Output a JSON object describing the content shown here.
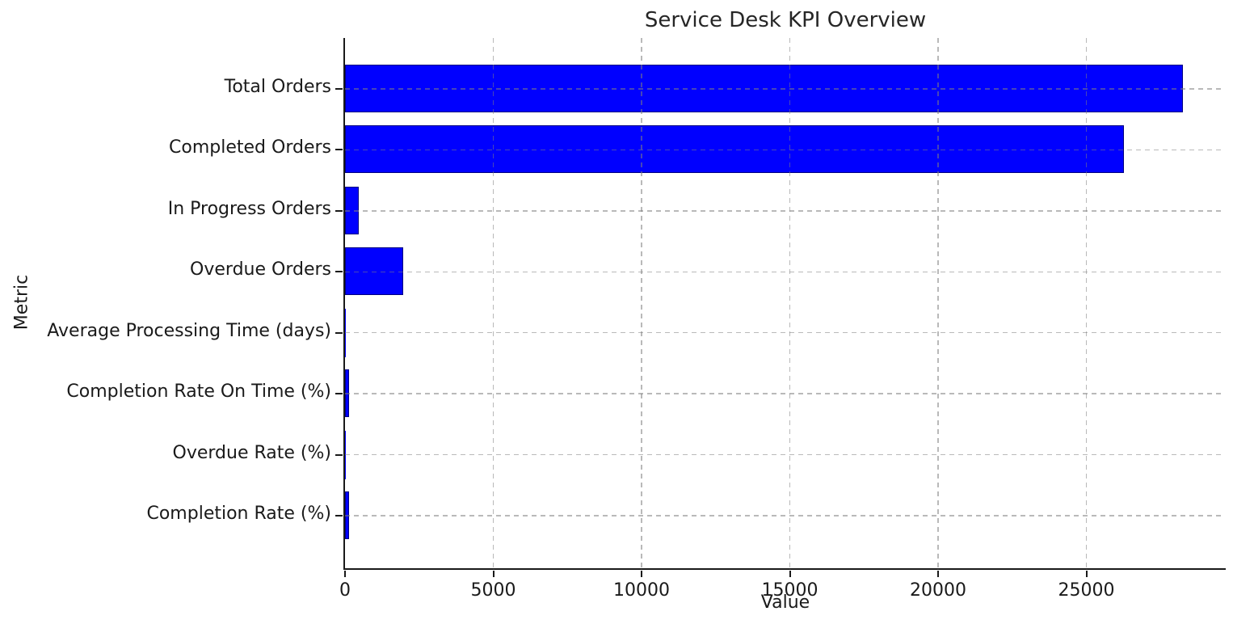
{
  "chart_data": {
    "type": "bar",
    "orientation": "horizontal",
    "title": "Service Desk KPI Overview",
    "xlabel": "Value",
    "ylabel": "Metric",
    "categories": [
      "Total Orders",
      "Completed Orders",
      "In Progress Orders",
      "Overdue Orders",
      "Average Processing Time (days)",
      "Completion Rate On Time (%)",
      "Overdue Rate (%)",
      "Completion Rate (%)"
    ],
    "values": [
      28200,
      26200,
      410,
      1900,
      7.4,
      88.6,
      6.8,
      93.1
    ],
    "xlim": [
      0,
      29700
    ],
    "xticks": [
      0,
      5000,
      10000,
      15000,
      20000,
      25000
    ],
    "xtick_labels": [
      "0",
      "5000",
      "10000",
      "15000",
      "20000",
      "25000"
    ],
    "grid": {
      "style": "dashed",
      "axes": "both",
      "color": "#808080",
      "alpha": 0.5,
      "above_bars": true
    },
    "legend": "none",
    "bar_color": "#0000ff",
    "bar_edge_color": "#000080",
    "spine_color": "#1a1a1a",
    "background": "#ffffff",
    "text_color": "#1a1a1a"
  }
}
